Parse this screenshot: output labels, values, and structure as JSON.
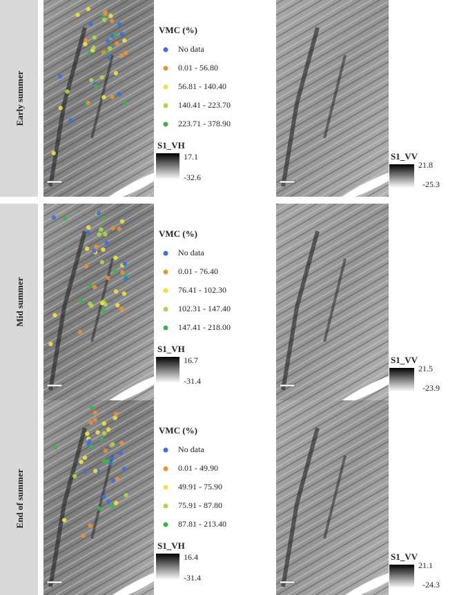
{
  "rows": [
    {
      "label": "Early summer",
      "legend": {
        "title": "VMC (%)",
        "items": [
          {
            "label": "No data",
            "color": "#3f6fd6"
          },
          {
            "label": "0.01 - 56.80",
            "color": "#e8913a"
          },
          {
            "label": "56.81 - 140.40",
            "color": "#efe04a"
          },
          {
            "label": "140.41 - 223.70",
            "color": "#a9d94c"
          },
          {
            "label": "223.71 - 378.90",
            "color": "#3cb44a"
          }
        ]
      },
      "vh": {
        "title": "S1_VH",
        "max": 17.1,
        "min": -32.6
      },
      "vv": {
        "title": "S1_VV",
        "max": 21.8,
        "min": -25.3
      }
    },
    {
      "label": "Mid summer",
      "legend": {
        "title": "VMC (%)",
        "items": [
          {
            "label": "No data",
            "color": "#3f6fd6"
          },
          {
            "label": "0.01 - 76.40",
            "color": "#e8913a"
          },
          {
            "label": "76.41 - 102.30",
            "color": "#efe04a"
          },
          {
            "label": "102.31 - 147.40",
            "color": "#a9d94c"
          },
          {
            "label": "147.41 - 218.00",
            "color": "#3cb44a"
          }
        ]
      },
      "vh": {
        "title": "S1_VH",
        "max": 16.7,
        "min": -31.4
      },
      "vv": {
        "title": "S1_VV",
        "max": 21.5,
        "min": -23.9
      }
    },
    {
      "label": "End of summer",
      "legend": {
        "title": "VMC (%)",
        "items": [
          {
            "label": "No data",
            "color": "#3f6fd6"
          },
          {
            "label": "0.01 - 49.90",
            "color": "#e8913a"
          },
          {
            "label": "49.91 - 75.90",
            "color": "#efe04a"
          },
          {
            "label": "75.91 - 87.80",
            "color": "#a9d94c"
          },
          {
            "label": "87.81 - 213.40",
            "color": "#3cb44a"
          }
        ]
      },
      "vh": {
        "title": "S1_VH",
        "max": 16.4,
        "min": -31.4
      },
      "vv": {
        "title": "S1_VV",
        "max": 21.1,
        "min": -24.3
      }
    }
  ]
}
